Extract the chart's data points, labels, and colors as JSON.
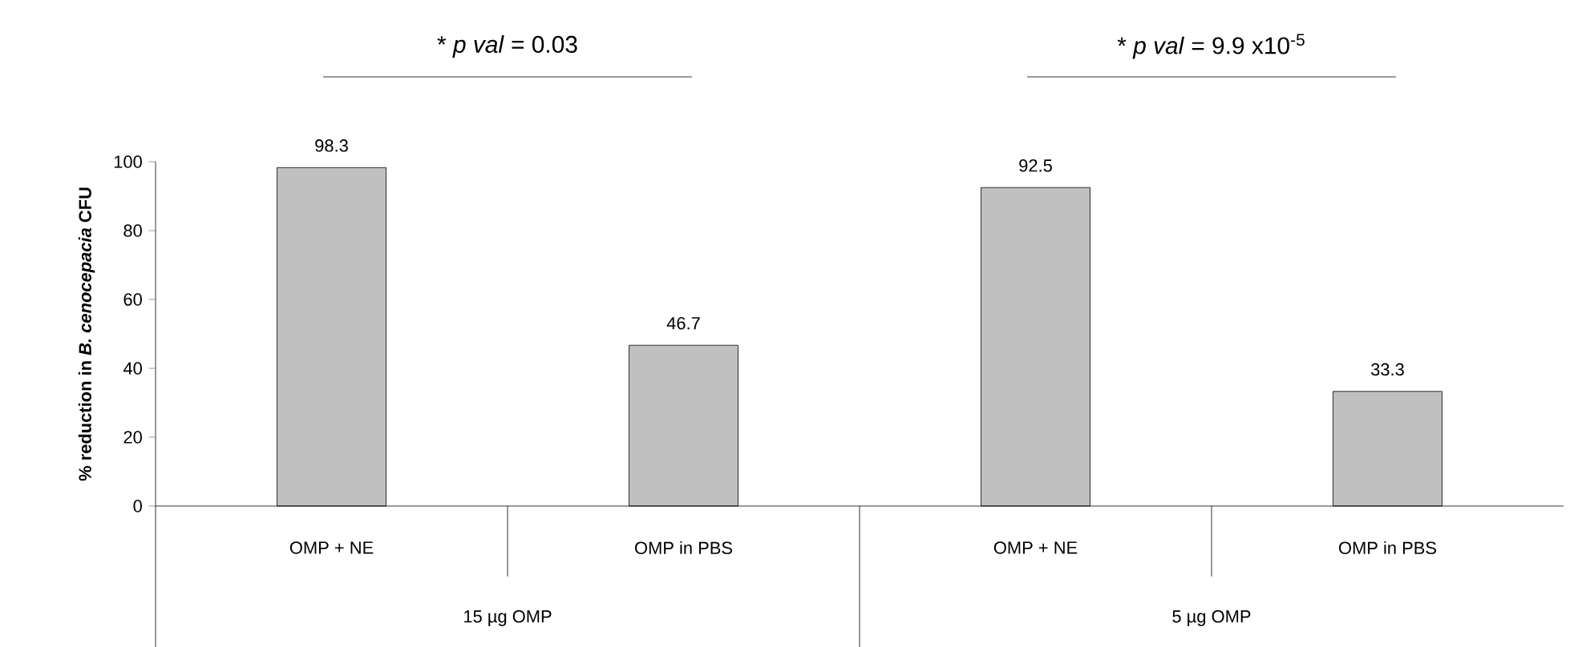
{
  "chart_data": {
    "type": "bar",
    "categories": [
      "OMP + NE",
      "OMP in PBS",
      "OMP + NE",
      "OMP in PBS"
    ],
    "values": [
      98.3,
      46.7,
      92.5,
      33.3
    ],
    "color": "#c0c0c0",
    "data_labels": true,
    "ylabel": "% reduction in *B. cenocepacia* CFU",
    "ylim": [
      0,
      100
    ],
    "yticks": [
      0,
      20,
      40,
      60,
      80,
      100
    ],
    "annotations": [
      "* *p val* = 0.03",
      "* *p val* = 9.9 x10$^{-5}$",
      "15 µg OMP",
      "5 µg OMP"
    ]
  }
}
